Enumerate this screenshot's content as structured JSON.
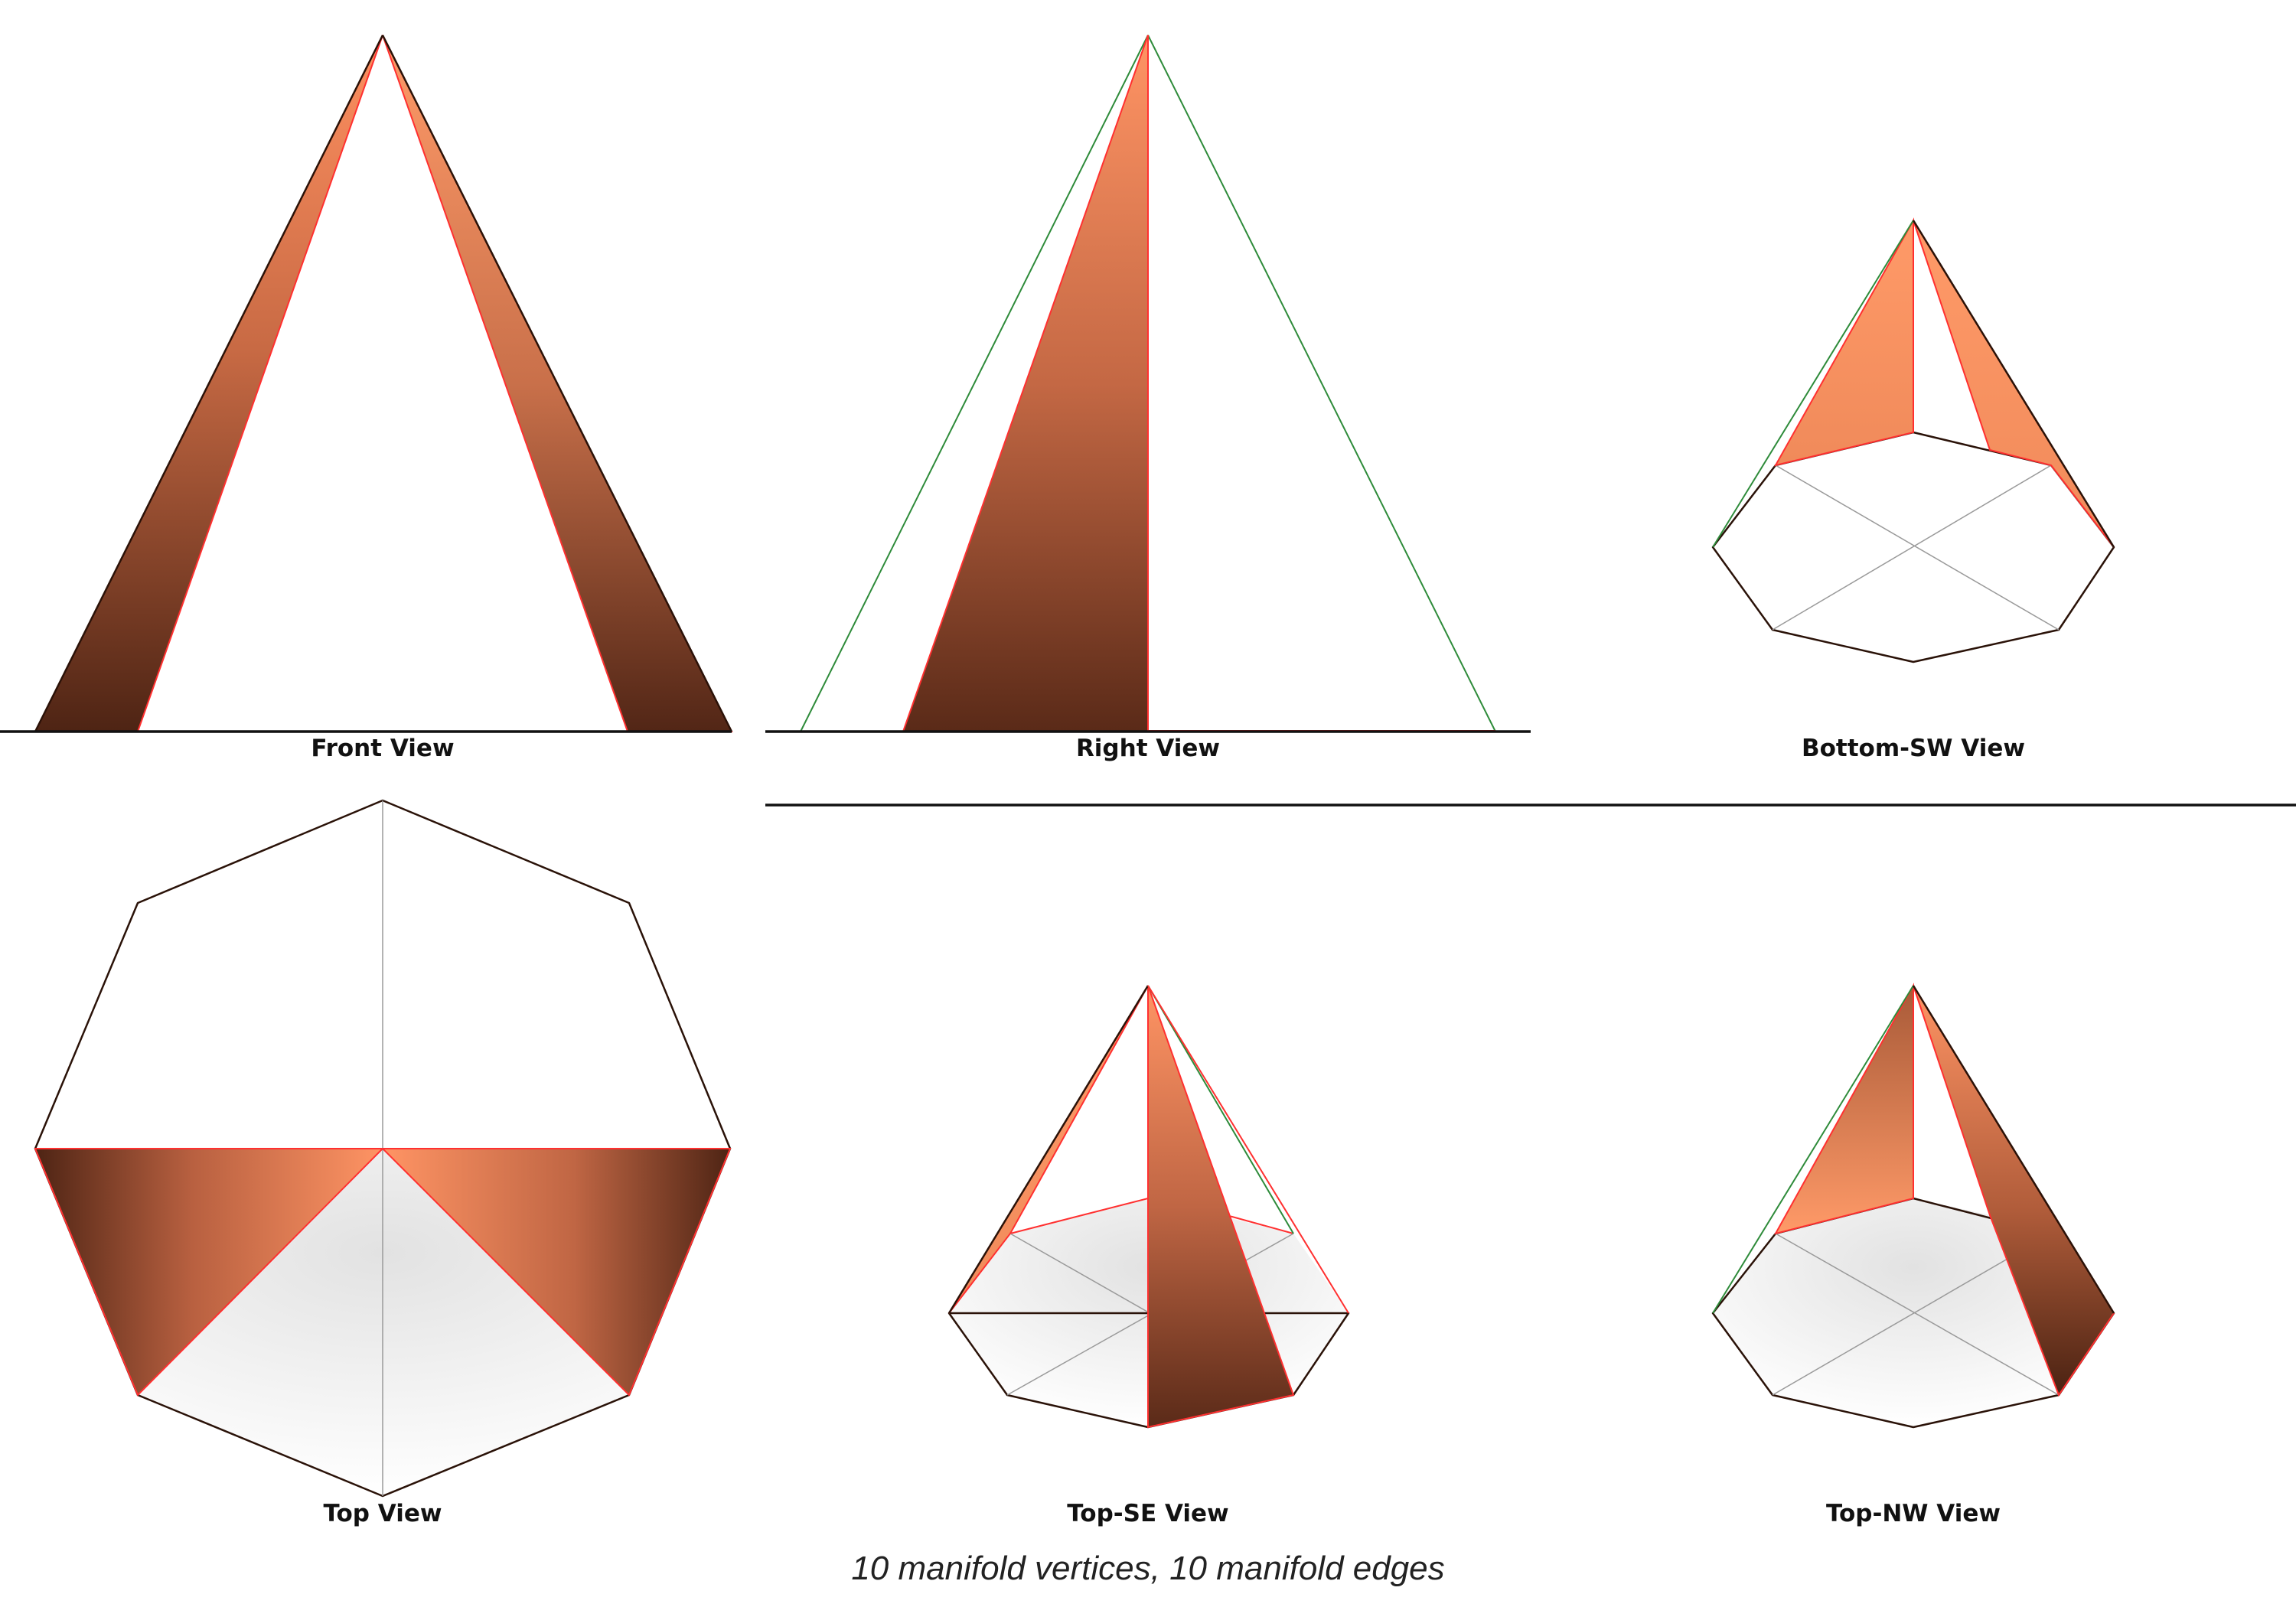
{
  "views": [
    {
      "id": "front",
      "label": "Front View"
    },
    {
      "id": "right",
      "label": "Right View"
    },
    {
      "id": "bottom-sw",
      "label": "Bottom-SW View"
    },
    {
      "id": "top",
      "label": "Top View"
    },
    {
      "id": "top-se",
      "label": "Top-SE View"
    },
    {
      "id": "top-nw",
      "label": "Top-NW View"
    }
  ],
  "caption": "10 manifold vertices, 10 manifold edges",
  "colors": {
    "face_light": "#ff9a68",
    "face_dark": "#5a2a18",
    "edge_red": "#ff3030",
    "edge_green": "#2e8b3a",
    "hidden_gray": "#9a9a9a"
  }
}
